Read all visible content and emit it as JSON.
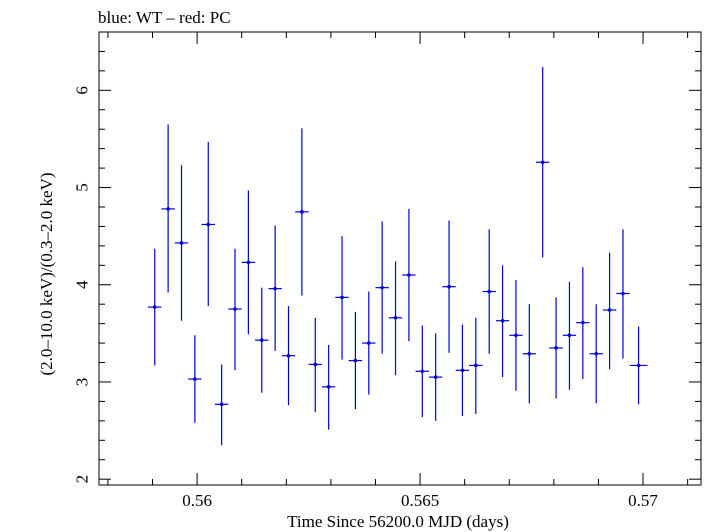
{
  "chart_data": {
    "type": "scatter",
    "title": "blue: WT – red: PC",
    "xlabel": "Time Since 56200.0 MJD (days)",
    "ylabel": "(2.0–10.0 keV)/(0.3–2.0 keV)",
    "xlim": [
      0.5578,
      0.5713
    ],
    "ylim": [
      1.94,
      6.6
    ],
    "xticks": [
      0.56,
      0.565,
      0.57
    ],
    "xtick_labels": [
      "0.56",
      "0.565",
      "0.57"
    ],
    "yticks": [
      2,
      3,
      4,
      5,
      6
    ],
    "ytick_labels": [
      "2",
      "3",
      "4",
      "5",
      "6"
    ],
    "grid": false,
    "series": [
      {
        "color": "#0000dd",
        "points": [
          {
            "x": 0.55905,
            "y": 3.77,
            "xerr": 0.00015,
            "ylo": 3.17,
            "yhi": 4.37
          },
          {
            "x": 0.55935,
            "y": 4.78,
            "xerr": 0.00015,
            "ylo": 3.92,
            "yhi": 5.65
          },
          {
            "x": 0.55965,
            "y": 4.43,
            "xerr": 0.00015,
            "ylo": 3.63,
            "yhi": 5.23
          },
          {
            "x": 0.55995,
            "y": 3.03,
            "xerr": 0.00015,
            "ylo": 2.58,
            "yhi": 3.48
          },
          {
            "x": 0.56025,
            "y": 4.62,
            "xerr": 0.00015,
            "ylo": 3.78,
            "yhi": 5.47
          },
          {
            "x": 0.56055,
            "y": 2.77,
            "xerr": 0.00015,
            "ylo": 2.35,
            "yhi": 3.18
          },
          {
            "x": 0.56085,
            "y": 3.75,
            "xerr": 0.00015,
            "ylo": 3.12,
            "yhi": 4.37
          },
          {
            "x": 0.56115,
            "y": 4.23,
            "xerr": 0.00015,
            "ylo": 3.49,
            "yhi": 4.97
          },
          {
            "x": 0.56145,
            "y": 3.43,
            "xerr": 0.00015,
            "ylo": 2.89,
            "yhi": 3.97
          },
          {
            "x": 0.56175,
            "y": 3.96,
            "xerr": 0.00015,
            "ylo": 3.32,
            "yhi": 4.61
          },
          {
            "x": 0.56205,
            "y": 3.27,
            "xerr": 0.00015,
            "ylo": 2.76,
            "yhi": 3.78
          },
          {
            "x": 0.56235,
            "y": 4.75,
            "xerr": 0.00015,
            "ylo": 3.89,
            "yhi": 5.61
          },
          {
            "x": 0.56265,
            "y": 3.18,
            "xerr": 0.00015,
            "ylo": 2.69,
            "yhi": 3.66
          },
          {
            "x": 0.56295,
            "y": 2.95,
            "xerr": 0.00015,
            "ylo": 2.51,
            "yhi": 3.38
          },
          {
            "x": 0.56325,
            "y": 3.87,
            "xerr": 0.00015,
            "ylo": 3.23,
            "yhi": 4.5
          },
          {
            "x": 0.56355,
            "y": 3.22,
            "xerr": 0.00015,
            "ylo": 2.72,
            "yhi": 3.72
          },
          {
            "x": 0.56385,
            "y": 3.4,
            "xerr": 0.00015,
            "ylo": 2.87,
            "yhi": 3.93
          },
          {
            "x": 0.56415,
            "y": 3.97,
            "xerr": 0.00015,
            "ylo": 3.29,
            "yhi": 4.65
          },
          {
            "x": 0.56445,
            "y": 3.66,
            "xerr": 0.00015,
            "ylo": 3.07,
            "yhi": 4.24
          },
          {
            "x": 0.56475,
            "y": 4.1,
            "xerr": 0.00015,
            "ylo": 3.42,
            "yhi": 4.78
          },
          {
            "x": 0.56505,
            "y": 3.11,
            "xerr": 0.00015,
            "ylo": 2.64,
            "yhi": 3.58
          },
          {
            "x": 0.56535,
            "y": 3.05,
            "xerr": 0.00015,
            "ylo": 2.6,
            "yhi": 3.5
          },
          {
            "x": 0.56565,
            "y": 3.98,
            "xerr": 0.00015,
            "ylo": 3.3,
            "yhi": 4.66
          },
          {
            "x": 0.56595,
            "y": 3.12,
            "xerr": 0.00015,
            "ylo": 2.65,
            "yhi": 3.59
          },
          {
            "x": 0.56625,
            "y": 3.17,
            "xerr": 0.00015,
            "ylo": 2.67,
            "yhi": 3.66
          },
          {
            "x": 0.56655,
            "y": 3.93,
            "xerr": 0.00015,
            "ylo": 3.29,
            "yhi": 4.57
          },
          {
            "x": 0.56685,
            "y": 3.63,
            "xerr": 0.00015,
            "ylo": 3.05,
            "yhi": 4.2
          },
          {
            "x": 0.56715,
            "y": 3.48,
            "xerr": 0.00015,
            "ylo": 2.91,
            "yhi": 4.05
          },
          {
            "x": 0.56745,
            "y": 3.29,
            "xerr": 0.00015,
            "ylo": 2.78,
            "yhi": 3.8
          },
          {
            "x": 0.56775,
            "y": 5.26,
            "xerr": 0.00015,
            "ylo": 4.28,
            "yhi": 6.24
          },
          {
            "x": 0.56805,
            "y": 3.35,
            "xerr": 0.00015,
            "ylo": 2.83,
            "yhi": 3.87
          },
          {
            "x": 0.56835,
            "y": 3.48,
            "xerr": 0.00015,
            "ylo": 2.92,
            "yhi": 4.03
          },
          {
            "x": 0.56865,
            "y": 3.61,
            "xerr": 0.00015,
            "ylo": 3.03,
            "yhi": 4.18
          },
          {
            "x": 0.56895,
            "y": 3.29,
            "xerr": 0.00015,
            "ylo": 2.78,
            "yhi": 3.8
          },
          {
            "x": 0.56925,
            "y": 3.74,
            "xerr": 0.00015,
            "ylo": 3.13,
            "yhi": 4.33
          },
          {
            "x": 0.56955,
            "y": 3.91,
            "xerr": 0.00015,
            "ylo": 3.24,
            "yhi": 4.57
          },
          {
            "x": 0.5699,
            "y": 3.17,
            "xerr": 0.0002,
            "ylo": 2.77,
            "yhi": 3.57
          }
        ]
      }
    ]
  }
}
